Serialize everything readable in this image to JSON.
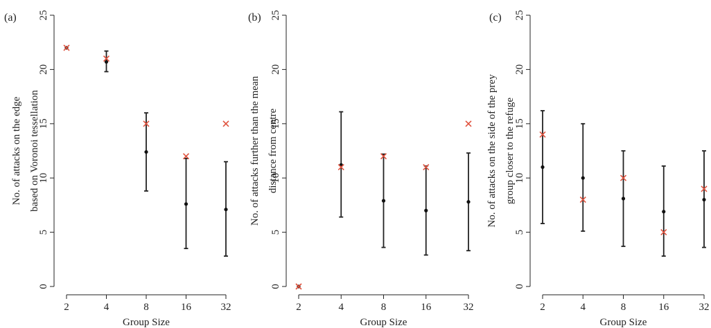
{
  "chart_data": [
    {
      "type": "scatter",
      "panel_label": "(a)",
      "xlabel": "Group Size",
      "ylabel": [
        "No. of  attacks on the edge",
        "based on Voronoi tessellation"
      ],
      "categories": [
        "2",
        "4",
        "8",
        "16",
        "32"
      ],
      "ylim": [
        0,
        25
      ],
      "yticks": [
        "0",
        "5",
        "10",
        "15",
        "20",
        "25"
      ],
      "series": [
        {
          "kind": "mean-with-error",
          "values": [
            22,
            20.7,
            12.4,
            7.6,
            7.1
          ],
          "lower": [
            22,
            19.8,
            8.8,
            3.5,
            2.8
          ],
          "upper": [
            22,
            21.7,
            16.0,
            11.8,
            11.5
          ]
        },
        {
          "kind": "observed",
          "values": [
            22,
            21,
            15,
            12,
            15
          ]
        }
      ]
    },
    {
      "type": "scatter",
      "panel_label": "(b)",
      "xlabel": "Group Size",
      "ylabel": [
        "No. of  attacks further than the mean",
        "distance from centre"
      ],
      "categories": [
        "2",
        "4",
        "8",
        "16",
        "32"
      ],
      "ylim": [
        0,
        25
      ],
      "yticks": [
        "0",
        "5",
        "10",
        "15",
        "20",
        "25"
      ],
      "series": [
        {
          "kind": "mean-with-error",
          "values": [
            0,
            11.2,
            7.9,
            7.0,
            7.8
          ],
          "lower": [
            0,
            6.4,
            3.6,
            2.9,
            3.3
          ],
          "upper": [
            0,
            16.1,
            12.2,
            11.1,
            12.3
          ]
        },
        {
          "kind": "observed",
          "values": [
            0,
            11,
            12,
            11,
            15
          ]
        }
      ]
    },
    {
      "type": "scatter",
      "panel_label": "(c)",
      "xlabel": "Group Size",
      "ylabel": [
        "No. of  attacks on the side of the prey",
        "group closer to the refuge"
      ],
      "categories": [
        "2",
        "4",
        "8",
        "16",
        "32"
      ],
      "ylim": [
        0,
        25
      ],
      "yticks": [
        "0",
        "5",
        "10",
        "15",
        "20",
        "25"
      ],
      "series": [
        {
          "kind": "mean-with-error",
          "values": [
            11.0,
            10.0,
            8.1,
            6.9,
            8.0
          ],
          "lower": [
            5.8,
            5.1,
            3.7,
            2.8,
            3.6
          ],
          "upper": [
            16.2,
            15.0,
            12.5,
            11.1,
            12.5
          ]
        },
        {
          "kind": "observed",
          "values": [
            14,
            8,
            10,
            5,
            9
          ]
        }
      ]
    }
  ],
  "colors": {
    "mean_point": "#111111",
    "error_bar": "#222222",
    "observed_marker": "#e0523e",
    "axis": "#222222"
  }
}
